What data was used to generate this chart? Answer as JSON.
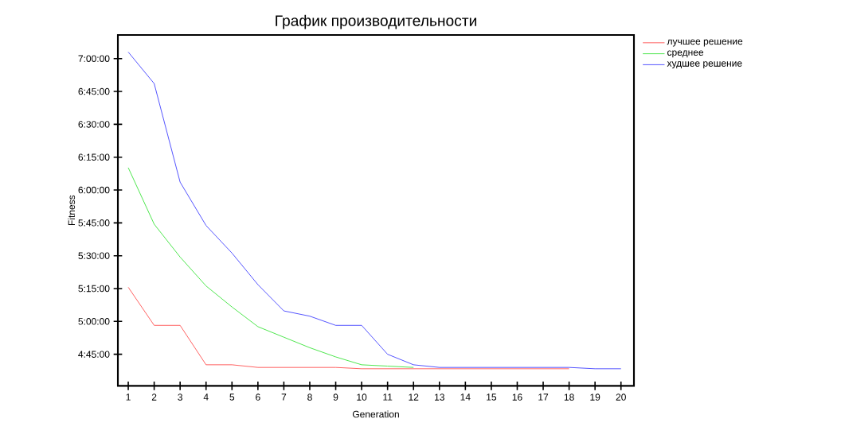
{
  "chart_data": {
    "type": "line",
    "title": "График производительности",
    "xlabel": "Generation",
    "ylabel": "Fitness",
    "x": [
      1,
      2,
      3,
      4,
      5,
      6,
      7,
      8,
      9,
      10,
      11,
      12,
      13,
      14,
      15,
      16,
      17,
      18,
      19,
      20
    ],
    "series": [
      {
        "name": "лучшее решение",
        "color": "#ff3b3b",
        "values": [
          5.26,
          4.97,
          4.97,
          4.67,
          4.67,
          4.65,
          4.65,
          4.65,
          4.65,
          4.64,
          4.64,
          4.64,
          4.64,
          4.64,
          4.64,
          4.64,
          4.64,
          4.64,
          null,
          null
        ]
      },
      {
        "name": "среднее",
        "color": "#22e022",
        "values": [
          6.17,
          5.74,
          5.49,
          5.27,
          5.11,
          4.96,
          4.88,
          4.8,
          4.73,
          4.67,
          4.66,
          4.65,
          null,
          null,
          null,
          null,
          null,
          null,
          null,
          null
        ]
      },
      {
        "name": "худшее решение",
        "color": "#2a2aff",
        "values": [
          7.05,
          6.81,
          6.06,
          5.73,
          5.52,
          5.28,
          5.08,
          5.04,
          4.97,
          4.97,
          4.75,
          4.67,
          4.65,
          4.65,
          4.65,
          4.65,
          4.65,
          4.65,
          4.64,
          4.64
        ]
      }
    ],
    "xlim": [
      0.6,
      20.5
    ],
    "ylim": [
      4.51,
      7.18
    ],
    "xticks": [
      1,
      2,
      3,
      4,
      5,
      6,
      7,
      8,
      9,
      10,
      11,
      12,
      13,
      14,
      15,
      16,
      17,
      18,
      19,
      20
    ],
    "yticks": [
      {
        "value": 4.75,
        "label": "4:45:00"
      },
      {
        "value": 5,
        "label": "5:00:00"
      },
      {
        "value": 5.25,
        "label": "5:15:00"
      },
      {
        "value": 5.5,
        "label": "5:30:00"
      },
      {
        "value": 5.75,
        "label": "5:45:00"
      },
      {
        "value": 6,
        "label": "6:00:00"
      },
      {
        "value": 6.25,
        "label": "6:15:00"
      },
      {
        "value": 6.5,
        "label": "6:30:00"
      },
      {
        "value": 6.75,
        "label": "6:45:00"
      },
      {
        "value": 7,
        "label": "7:00:00"
      }
    ],
    "legend": "right",
    "grid": false,
    "marker": "none",
    "line_style": "solid"
  }
}
